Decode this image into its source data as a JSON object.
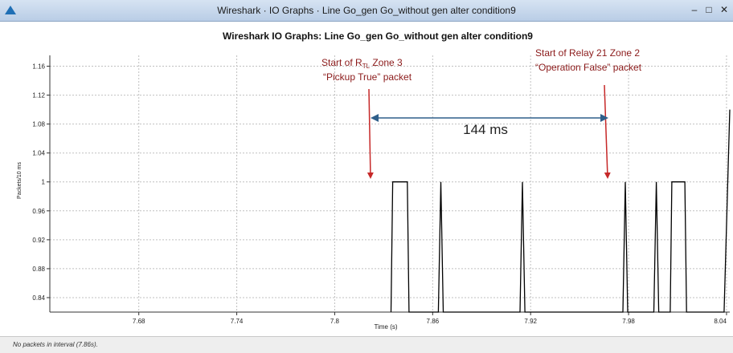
{
  "window": {
    "title": "Wireshark · IO Graphs · Line Go_gen Go_without gen alter condition9",
    "minimize_glyph": "–",
    "maximize_glyph": "□",
    "close_glyph": "✕"
  },
  "status": {
    "text": "No packets in interval (7.86s)."
  },
  "annotations": {
    "left_start": "Start of R",
    "left_subscript": "TL",
    "left_end": " Zone 3",
    "left_line2": "“Pickup True” packet",
    "right_line1": "Start of Relay 21 Zone 2",
    "right_line2": "“Operation False” packet",
    "interval": "144 ms"
  },
  "colors": {
    "series": "#000000",
    "arrow_red": "#c62828",
    "arrow_blue": "#2f5f8a",
    "grid": "#c0c0c0",
    "accent_logo": "#1f6fb5"
  },
  "chart_data": {
    "type": "line",
    "title": "Wireshark IO Graphs: Line Go_gen Go_without gen alter condition9",
    "xlabel": "Time (s)",
    "ylabel": "Packets/10 ms",
    "xlim": [
      7.6255,
      8.042
    ],
    "ylim": [
      0.82,
      1.175
    ],
    "grid": true,
    "x_ticks": [
      7.68,
      7.74,
      7.8,
      7.86,
      7.92,
      7.98,
      8.04
    ],
    "x_tick_labels": [
      "7.68",
      "7.74",
      "7.8",
      "7.86",
      "7.92",
      "7.98",
      "8.04"
    ],
    "y_ticks": [
      0.84,
      0.88,
      0.92,
      0.96,
      1,
      1.04,
      1.08,
      1.12,
      1.16
    ],
    "y_tick_labels": [
      "0.84",
      "0.88",
      "0.92",
      "0.96",
      "1",
      "1.04",
      "1.08",
      "1.12",
      "1.16"
    ],
    "series": [
      {
        "points": [
          [
            7.8345,
            0.82
          ],
          [
            7.8355,
            1
          ],
          [
            7.8445,
            1
          ],
          [
            7.8455,
            0.82
          ],
          [
            7.8635,
            0.82
          ],
          [
            7.865,
            1
          ],
          [
            7.8665,
            0.82
          ],
          [
            7.9135,
            0.82
          ],
          [
            7.915,
            1
          ],
          [
            7.9165,
            0.82
          ],
          [
            7.9765,
            0.82
          ],
          [
            7.978,
            1
          ],
          [
            7.9795,
            0.82
          ],
          [
            7.9955,
            0.82
          ],
          [
            7.997,
            1
          ],
          [
            7.9985,
            0.82
          ],
          [
            8.0055,
            0.82
          ],
          [
            8.0065,
            1
          ],
          [
            8.0145,
            1
          ],
          [
            8.0155,
            0.82
          ],
          [
            8.0385,
            0.82
          ],
          [
            8.042,
            1.1
          ]
        ]
      }
    ],
    "annotations": [
      {
        "text": "Start of R_TL Zone 3 “Pickup True” packet",
        "x": 7.835,
        "y": 1
      },
      {
        "text": "Start of Relay 21 Zone 2 “Operation False” packet",
        "x": 7.978,
        "y": 1
      },
      {
        "text": "144 ms",
        "x_start": 7.8345,
        "x_end": 7.9785,
        "y": 1.08
      }
    ]
  }
}
